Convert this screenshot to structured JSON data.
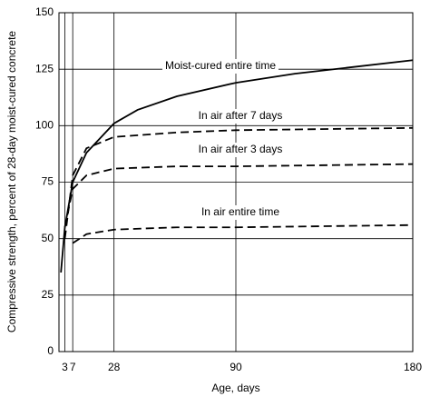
{
  "chart_data": {
    "type": "line",
    "x_label": "Age, days",
    "y_label": "Compressive strength, percent of 28-day moist-cured concrete",
    "xlim": [
      0,
      180
    ],
    "xticks": [
      3,
      7,
      28,
      90,
      180
    ],
    "ylim": [
      0,
      150
    ],
    "yticks": [
      0,
      25,
      50,
      75,
      100,
      125,
      150
    ],
    "grid": true,
    "series": [
      {
        "name": "Moist-cured entire time",
        "color": "#000000",
        "style": "solid",
        "x": [
          1,
          3,
          7,
          14,
          28,
          40,
          60,
          90,
          120,
          150,
          180
        ],
        "values": [
          35,
          55,
          75,
          88,
          101,
          107,
          113,
          119,
          123,
          126,
          129
        ]
      },
      {
        "name": "In air after 7 days",
        "color": "#000000",
        "style": "dashed",
        "x": [
          3,
          7,
          14,
          28,
          60,
          90,
          180
        ],
        "values": [
          50,
          78,
          90,
          95,
          97,
          98,
          99
        ]
      },
      {
        "name": "In air after 3 days",
        "color": "#000000",
        "style": "dashed",
        "x": [
          3,
          7,
          14,
          28,
          60,
          90,
          180
        ],
        "values": [
          55,
          72,
          78,
          81,
          82,
          82,
          83
        ]
      },
      {
        "name": "In air entire time",
        "color": "#000000",
        "style": "dashed",
        "x": [
          7,
          14,
          28,
          60,
          90,
          180
        ],
        "values": [
          48,
          52,
          54,
          55,
          55,
          56
        ]
      }
    ]
  }
}
